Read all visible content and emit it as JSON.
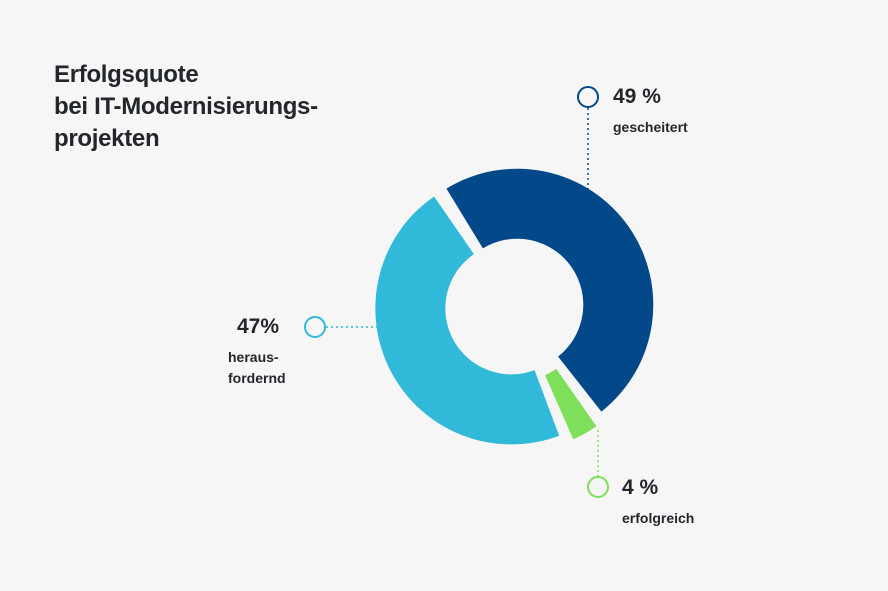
{
  "chart_data": {
    "type": "pie",
    "variant": "donut",
    "title": [
      "Erfolgsquote",
      "bei IT-Modernisierungs-",
      "projekten"
    ],
    "slices": [
      {
        "name": "gescheitert",
        "value": 49,
        "label": "49 %",
        "color": "#03498a"
      },
      {
        "name": "erfolgreich",
        "value": 4,
        "label": "4 %",
        "color": "#7ddf5a"
      },
      {
        "name": "herausfordernd",
        "value": 47,
        "label": "47%",
        "label_lines": [
          "heraus-",
          "fordernd"
        ],
        "color": "#31b9d9"
      }
    ]
  }
}
